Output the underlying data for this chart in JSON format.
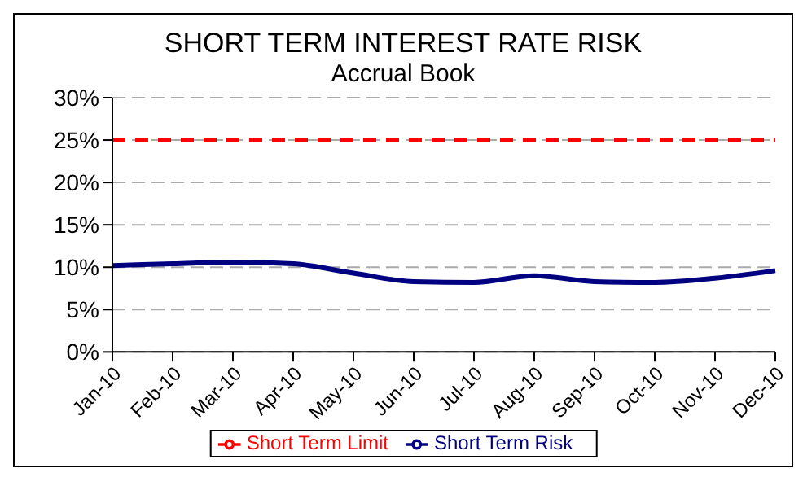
{
  "chart_data": {
    "type": "line",
    "title": "SHORT TERM INTEREST RATE RISK",
    "subtitle": "Accrual Book",
    "categories": [
      "Jan-10",
      "Feb-10",
      "Mar-10",
      "Apr-10",
      "May-10",
      "Jun-10",
      "Jul-10",
      "Aug-10",
      "Sep-10",
      "Oct-10",
      "Nov-10",
      "Dec-10"
    ],
    "series": [
      {
        "name": "Short Term Risk",
        "color": "#000080",
        "line_style": "solid",
        "values": [
          10.2,
          10.4,
          10.6,
          10.4,
          9.3,
          8.3,
          8.2,
          9.0,
          8.3,
          8.2,
          8.7,
          9.6
        ]
      },
      {
        "name": "Short Term Limit",
        "color": "#ff0000",
        "line_style": "dashed",
        "values": [
          25,
          25,
          25,
          25,
          25,
          25,
          25,
          25,
          25,
          25,
          25,
          25
        ]
      }
    ],
    "ylim": [
      0,
      30
    ],
    "yticks": [
      {
        "value": 0,
        "label": "0%"
      },
      {
        "value": 5,
        "label": "5%"
      },
      {
        "value": 10,
        "label": "10%"
      },
      {
        "value": 15,
        "label": "15%"
      },
      {
        "value": 20,
        "label": "20%"
      },
      {
        "value": 25,
        "label": "25%"
      },
      {
        "value": 30,
        "label": "30%"
      }
    ],
    "grid": "y",
    "legend": "bottom",
    "marker": "none"
  }
}
